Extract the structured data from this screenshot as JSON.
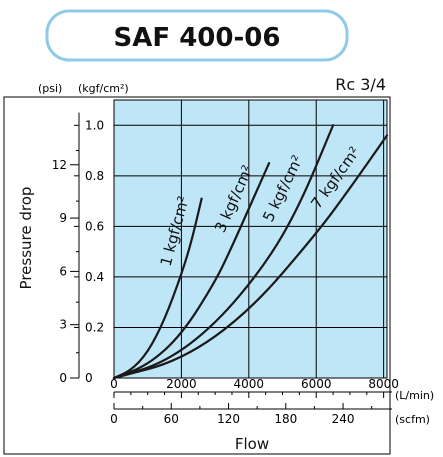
{
  "chart_data": {
    "type": "line",
    "title": "SAF 400-06",
    "subtitle": "Rc 3/4",
    "xlabel": "Flow",
    "ylabel": "Pressure drop",
    "x_unit_primary": "(L/min)",
    "x_unit_secondary": "(scfm)",
    "y_unit_left": "(psi)",
    "y_unit_right": "(kgf/cm²)",
    "xlim": [
      0,
      8100
    ],
    "ylim": [
      0,
      1.1
    ],
    "x_ticks_primary": [
      "0",
      "2000",
      "4000",
      "6000",
      "8000"
    ],
    "x_ticks_secondary": [
      "0",
      "60",
      "120",
      "180",
      "240"
    ],
    "y_ticks_kgf": [
      "0",
      "0.2",
      "0.4",
      "0.6",
      "0.8",
      "1.0"
    ],
    "y_ticks_psi": [
      "0",
      "3",
      "6",
      "9",
      "12"
    ],
    "grid": true,
    "series": [
      {
        "name": "1 kgf/cm²",
        "x": [
          0,
          500,
          1000,
          1500,
          2000,
          2300,
          2600
        ],
        "y": [
          0,
          0.03,
          0.1,
          0.23,
          0.41,
          0.54,
          0.71
        ]
      },
      {
        "name": "3 kgf/cm²",
        "x": [
          0,
          1000,
          2000,
          3000,
          3500,
          4000,
          4600
        ],
        "y": [
          0,
          0.05,
          0.17,
          0.38,
          0.52,
          0.67,
          0.85
        ]
      },
      {
        "name": "5 kgf/cm²",
        "x": [
          0,
          1500,
          3000,
          4500,
          5500,
          6500
        ],
        "y": [
          0,
          0.06,
          0.21,
          0.45,
          0.68,
          1.0
        ]
      },
      {
        "name": "7 kgf/cm²",
        "x": [
          0,
          2000,
          4000,
          6000,
          7000,
          8100
        ],
        "y": [
          0,
          0.07,
          0.26,
          0.57,
          0.75,
          0.96
        ]
      }
    ],
    "colors": {
      "plot_bg": "#bfe6f7",
      "grid": "#000000",
      "curve": "#1a1a1a",
      "title_border": "#8fcbe6"
    }
  }
}
